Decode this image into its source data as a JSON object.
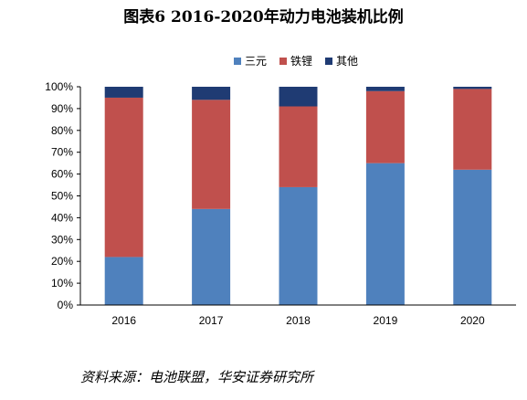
{
  "figure": {
    "title": "图表6 2016-2020年动力电池装机比例",
    "source": "资料来源：电池联盟，华安证券研究所"
  },
  "chart_data": {
    "type": "bar",
    "stacked": true,
    "categories": [
      "2016",
      "2017",
      "2018",
      "2019",
      "2020"
    ],
    "series": [
      {
        "name": "三元",
        "color": "#4f81bd",
        "values": [
          22,
          44,
          54,
          65,
          62
        ]
      },
      {
        "name": "铁锂",
        "color": "#c0504d",
        "values": [
          73,
          50,
          37,
          33,
          37
        ]
      },
      {
        "name": "其他",
        "color": "#1f3b73",
        "values": [
          5,
          6,
          9,
          2,
          1
        ]
      }
    ],
    "ylim": [
      0,
      100
    ],
    "yticks": [
      "0%",
      "10%",
      "20%",
      "30%",
      "40%",
      "50%",
      "60%",
      "70%",
      "80%",
      "90%",
      "100%"
    ],
    "grid": false,
    "legend_position": "top"
  }
}
